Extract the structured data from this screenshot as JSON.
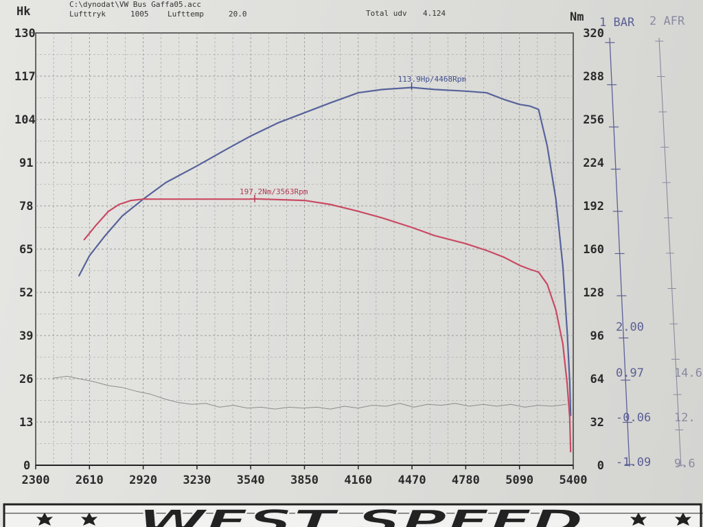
{
  "header": {
    "file_path": "C:\\dynodat\\VW Bus Gaffa05.acc",
    "pressure_label": "Lufttryk",
    "pressure_value": "1005",
    "temp_label": "Lufttemp",
    "temp_value": "20.0",
    "ratio_label": "Total udv",
    "ratio_value": "4.124"
  },
  "chart_data": {
    "type": "line",
    "left_axis_unit": "Hk",
    "right_axis_unit": "Nm",
    "xlim": [
      2300,
      5400
    ],
    "x_ticks": [
      "2300",
      "2610",
      "2920",
      "3230",
      "3540",
      "3850",
      "4160",
      "4470",
      "4780",
      "5090",
      "5400"
    ],
    "hk_ticks": [
      "130",
      "117",
      "104",
      "91",
      "78",
      "65",
      "52",
      "39",
      "26",
      "13",
      "0"
    ],
    "hk_lim": [
      0,
      130
    ],
    "nm_ticks": [
      "320",
      "288",
      "256",
      "224",
      "192",
      "160",
      "128",
      "96",
      "64",
      "32",
      "0"
    ],
    "nm_lim": [
      0,
      320
    ],
    "bar_axis_title": "1 BAR",
    "afr_axis_title": "2 AFR",
    "bar_ticks": [
      "2.00",
      "0.97",
      "-0.06",
      "-1.09"
    ],
    "afr_ticks": [
      "14.6",
      "12.",
      "9.6"
    ],
    "grid": true,
    "series": [
      {
        "name": "Hk",
        "axis": "left",
        "color": "#56629a",
        "x": [
          2550,
          2610,
          2700,
          2800,
          2920,
          3050,
          3230,
          3400,
          3540,
          3700,
          3850,
          4000,
          4160,
          4300,
          4470,
          4600,
          4780,
          4900,
          5000,
          5090,
          5150,
          5200,
          5250,
          5300,
          5340,
          5365,
          5380,
          5385
        ],
        "y": [
          57,
          63,
          69,
          75,
          80,
          85,
          90,
          95,
          99,
          103,
          106,
          109,
          112,
          113,
          113.6,
          113,
          112.5,
          112,
          110,
          108.5,
          108,
          107,
          96,
          80,
          60,
          40,
          25,
          15
        ]
      },
      {
        "name": "Nm",
        "axis": "right",
        "color": "#c94a62",
        "x": [
          2580,
          2650,
          2720,
          2780,
          2850,
          2920,
          3000,
          3230,
          3540,
          3563,
          3850,
          4000,
          4160,
          4300,
          4470,
          4600,
          4780,
          4900,
          5000,
          5090,
          5150,
          5200,
          5250,
          5300,
          5340,
          5365,
          5380,
          5385
        ],
        "y": [
          167,
          178,
          188,
          193,
          196,
          197,
          197,
          197,
          197,
          197.2,
          196,
          193,
          188,
          183,
          176,
          170,
          164,
          159,
          154,
          148,
          145,
          143,
          134,
          115,
          90,
          60,
          35,
          10
        ]
      },
      {
        "name": "AFR",
        "axis": "afr",
        "color": "#8c8c8c",
        "x": [
          2400,
          2480,
          2560,
          2640,
          2720,
          2800,
          2880,
          2960,
          3040,
          3120,
          3200,
          3280,
          3360,
          3440,
          3520,
          3600,
          3680,
          3760,
          3840,
          3920,
          4000,
          4080,
          4160,
          4240,
          4320,
          4400,
          4480,
          4560,
          4640,
          4720,
          4800,
          4880,
          4960,
          5040,
          5120,
          5200,
          5280,
          5360
        ],
        "y": [
          14.25,
          14.35,
          14.2,
          14.05,
          13.85,
          13.75,
          13.55,
          13.4,
          13.15,
          12.95,
          12.85,
          12.9,
          12.7,
          12.8,
          12.65,
          12.7,
          12.6,
          12.7,
          12.65,
          12.7,
          12.6,
          12.75,
          12.65,
          12.8,
          12.75,
          12.9,
          12.7,
          12.85,
          12.8,
          12.9,
          12.75,
          12.85,
          12.75,
          12.85,
          12.7,
          12.8,
          12.75,
          12.85
        ]
      }
    ],
    "annotations": [
      {
        "text": "113.9Hp/4468Rpm",
        "x": 4468,
        "y": 113.9,
        "axis": "left"
      },
      {
        "text": "197.2Nm/3563Rpm",
        "x": 3563,
        "y": 197.2,
        "axis": "right"
      }
    ]
  },
  "footer": {
    "brand": "WEST SPEED"
  }
}
